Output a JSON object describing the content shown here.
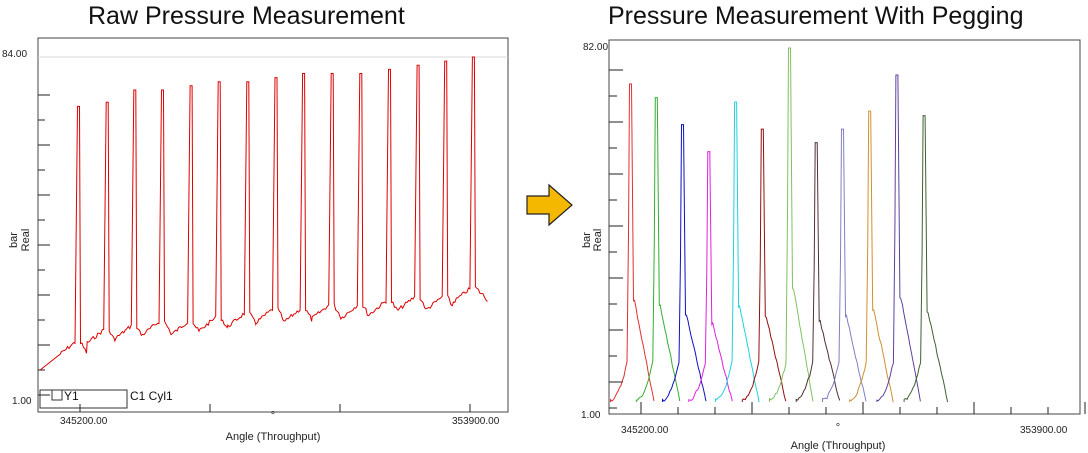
{
  "chart_data": [
    {
      "type": "line",
      "title": "Raw Pressure Measurement",
      "xlabel": "Angle (Throughput)",
      "xunit": "°",
      "ylabel_unit": "bar",
      "ylabel_type": "Real",
      "xlim": [
        345200.0,
        353900.0
      ],
      "ylim": [
        1.0,
        84.0
      ],
      "x_tick_labels": [
        "345200.00",
        "353900.00"
      ],
      "y_tick_labels": [
        "1.00",
        "84.00"
      ],
      "legend": [
        "Y1",
        "C1 Cyl1"
      ],
      "grid": false,
      "color": "#dd0000",
      "series": [
        {
          "cycles": [
            {
              "peak_x": 345170,
              "peak": 72,
              "baseline": 14
            },
            {
              "peak_x": 345760,
              "peak": 73,
              "baseline": 17
            },
            {
              "peak_x": 346330,
              "peak": 76,
              "baseline": 18
            },
            {
              "peak_x": 346900,
              "peak": 76,
              "baseline": 19
            },
            {
              "peak_x": 347490,
              "peak": 77,
              "baseline": 19
            },
            {
              "peak_x": 348070,
              "peak": 78,
              "baseline": 20
            },
            {
              "peak_x": 348660,
              "peak": 78,
              "baseline": 21
            },
            {
              "peak_x": 349240,
              "peak": 79,
              "baseline": 22
            },
            {
              "peak_x": 349810,
              "peak": 80,
              "baseline": 22
            },
            {
              "peak_x": 350400,
              "peak": 80,
              "baseline": 23
            },
            {
              "peak_x": 350990,
              "peak": 80,
              "baseline": 23
            },
            {
              "peak_x": 351580,
              "peak": 81,
              "baseline": 24
            },
            {
              "peak_x": 352170,
              "peak": 82,
              "baseline": 25
            },
            {
              "peak_x": 352740,
              "peak": 83,
              "baseline": 25
            },
            {
              "peak_x": 353310,
              "peak": 84,
              "baseline": 27
            }
          ]
        }
      ]
    },
    {
      "type": "line",
      "title": "Pressure Measurement With Pegging",
      "xlabel": "Angle (Throughput)",
      "xunit": "°",
      "ylabel_unit": "bar",
      "ylabel_type": "Real",
      "xlim": [
        345200.0,
        353900.0
      ],
      "ylim": [
        1.0,
        82.0
      ],
      "x_tick_labels": [
        "345200.00",
        "353900.00"
      ],
      "y_tick_labels": [
        "1.00",
        "82.00"
      ],
      "grid": false,
      "series": [
        {
          "peak_x": 345210,
          "peak": 74,
          "color": "#e03030"
        },
        {
          "peak_x": 345770,
          "peak": 71,
          "color": "#30b030"
        },
        {
          "peak_x": 346340,
          "peak": 65,
          "color": "#1010c0"
        },
        {
          "peak_x": 346910,
          "peak": 59,
          "color": "#e020e0"
        },
        {
          "peak_x": 347490,
          "peak": 70,
          "color": "#20d0e0"
        },
        {
          "peak_x": 348070,
          "peak": 64,
          "color": "#901010"
        },
        {
          "peak_x": 348660,
          "peak": 82,
          "color": "#80c060"
        },
        {
          "peak_x": 349240,
          "peak": 61,
          "color": "#503030"
        },
        {
          "peak_x": 349810,
          "peak": 64,
          "color": "#8080c0"
        },
        {
          "peak_x": 350400,
          "peak": 68,
          "color": "#d09030"
        },
        {
          "peak_x": 350990,
          "peak": 76,
          "color": "#6040a0"
        },
        {
          "peak_x": 351580,
          "peak": 67,
          "color": "#406030"
        }
      ]
    }
  ],
  "arrow": {
    "color": "#f5b800"
  }
}
